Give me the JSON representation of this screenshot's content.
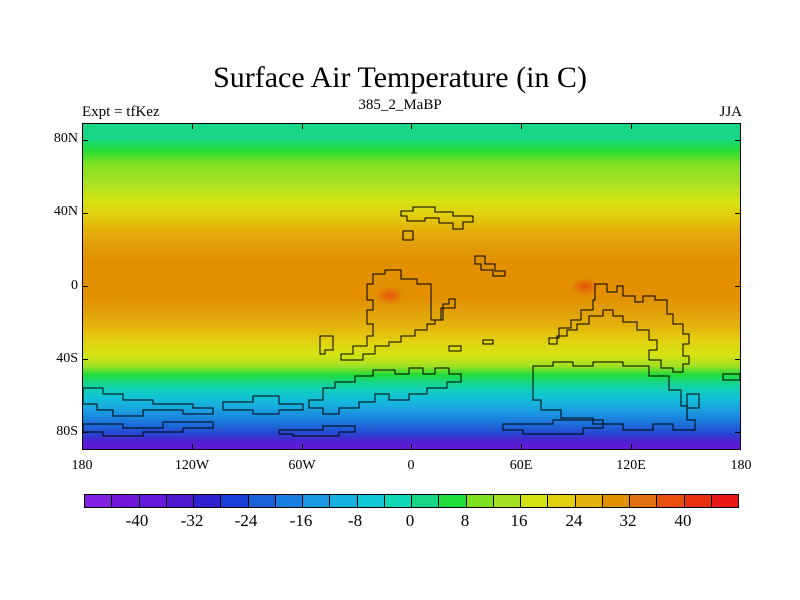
{
  "title": "Surface Air Temperature (in C)",
  "subtitle": "385_2_MaBP",
  "left_label": "Expt = tfKez",
  "right_label": "JJA",
  "map": {
    "lat_labels": [
      "80N",
      "40N",
      "0",
      "40S",
      "80S"
    ],
    "lon_labels": [
      "180",
      "120W",
      "60W",
      "0",
      "60E",
      "120E",
      "180"
    ],
    "lat_range": [
      -90,
      90
    ],
    "lon_range": [
      -180,
      180
    ],
    "bands": [
      {
        "lat": 90,
        "color": "#18d686"
      },
      {
        "lat": 82,
        "color": "#18d686"
      },
      {
        "lat": 76,
        "color": "#1fdc3b"
      },
      {
        "lat": 68,
        "color": "#7fe020"
      },
      {
        "lat": 58,
        "color": "#a4e024"
      },
      {
        "lat": 48,
        "color": "#d4e413"
      },
      {
        "lat": 40,
        "color": "#e2d010"
      },
      {
        "lat": 32,
        "color": "#e4b20c"
      },
      {
        "lat": 24,
        "color": "#e2a00c"
      },
      {
        "lat": 14,
        "color": "#e29000"
      },
      {
        "lat": -6,
        "color": "#e29000"
      },
      {
        "lat": -14,
        "color": "#e2a00c"
      },
      {
        "lat": -22,
        "color": "#e4b20c"
      },
      {
        "lat": -30,
        "color": "#e2d010"
      },
      {
        "lat": -38,
        "color": "#d4e413"
      },
      {
        "lat": -44,
        "color": "#a4e024"
      },
      {
        "lat": -49,
        "color": "#1fdc3b"
      },
      {
        "lat": -53,
        "color": "#18d686"
      },
      {
        "lat": -57,
        "color": "#12d0b8"
      },
      {
        "lat": -62,
        "color": "#12c0d8"
      },
      {
        "lat": -67,
        "color": "#1aa8de"
      },
      {
        "lat": -72,
        "color": "#1a8ae0"
      },
      {
        "lat": -77,
        "color": "#1c6ad8"
      },
      {
        "lat": -82,
        "color": "#2a40d0"
      },
      {
        "lat": -86,
        "color": "#5020d0"
      },
      {
        "lat": -90,
        "color": "#6818d8"
      }
    ],
    "hot_spots": [
      {
        "lon": -12,
        "lat": -5,
        "color": "#e85010"
      },
      {
        "lon": 95,
        "lat": 0,
        "color": "#e85010"
      }
    ]
  },
  "colorbar": {
    "colors": [
      "#8020e0",
      "#7018d8",
      "#6418d8",
      "#5018d0",
      "#3020d0",
      "#1840d8",
      "#1c60d8",
      "#1a7ee0",
      "#1a98e0",
      "#16b0e0",
      "#12c8d8",
      "#12d8b8",
      "#18d686",
      "#1fdc3b",
      "#7fe020",
      "#a4e024",
      "#d4e413",
      "#e2d010",
      "#e4b20c",
      "#e29000",
      "#e27010",
      "#e85010",
      "#e83010",
      "#e81818"
    ],
    "labels": [
      "-40",
      "-32",
      "-24",
      "-16",
      "-8",
      "0",
      "8",
      "16",
      "24",
      "32",
      "40"
    ]
  }
}
